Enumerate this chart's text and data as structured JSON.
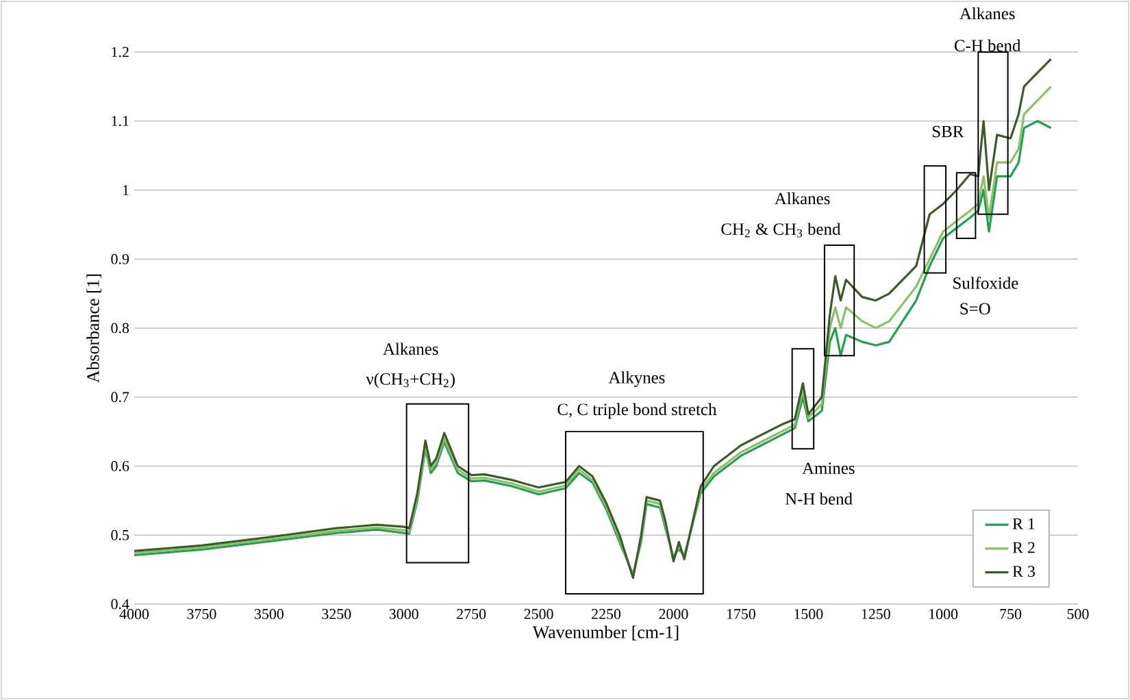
{
  "chart_data": {
    "type": "line",
    "xlabel": "Wavenumber [cm-1]",
    "ylabel": "Absorbance [1]",
    "x": [
      4000,
      3750,
      3500,
      3250,
      3100,
      3000,
      2980,
      2950,
      2920,
      2900,
      2880,
      2850,
      2800,
      2750,
      2700,
      2600,
      2500,
      2400,
      2350,
      2300,
      2250,
      2200,
      2150,
      2120,
      2100,
      2050,
      2030,
      2000,
      1980,
      1960,
      1900,
      1850,
      1750,
      1700,
      1600,
      1550,
      1520,
      1500,
      1450,
      1420,
      1400,
      1380,
      1360,
      1300,
      1250,
      1200,
      1100,
      1050,
      1000,
      950,
      900,
      870,
      850,
      830,
      800,
      750,
      720,
      700,
      650,
      600
    ],
    "series": [
      {
        "name": "R 1",
        "color": "#1fa34a",
        "values": [
          0.471,
          0.479,
          0.491,
          0.503,
          0.508,
          0.503,
          0.502,
          0.55,
          0.625,
          0.59,
          0.6,
          0.635,
          0.59,
          0.578,
          0.579,
          0.571,
          0.559,
          0.568,
          0.59,
          0.576,
          0.538,
          0.49,
          0.443,
          0.49,
          0.545,
          0.54,
          0.51,
          0.468,
          0.48,
          0.47,
          0.56,
          0.585,
          0.615,
          0.625,
          0.645,
          0.655,
          0.7,
          0.665,
          0.68,
          0.78,
          0.8,
          0.76,
          0.79,
          0.78,
          0.775,
          0.78,
          0.84,
          0.89,
          0.93,
          0.945,
          0.96,
          0.97,
          1.0,
          0.94,
          1.02,
          1.02,
          1.04,
          1.09,
          1.1,
          1.09
        ]
      },
      {
        "name": "R 2",
        "color": "#8cc068",
        "values": [
          0.474,
          0.482,
          0.494,
          0.506,
          0.511,
          0.507,
          0.505,
          0.555,
          0.63,
          0.595,
          0.605,
          0.64,
          0.595,
          0.582,
          0.583,
          0.575,
          0.563,
          0.572,
          0.595,
          0.58,
          0.542,
          0.495,
          0.44,
          0.495,
          0.55,
          0.545,
          0.515,
          0.465,
          0.485,
          0.468,
          0.565,
          0.59,
          0.62,
          0.63,
          0.65,
          0.66,
          0.71,
          0.67,
          0.69,
          0.8,
          0.83,
          0.8,
          0.83,
          0.81,
          0.8,
          0.81,
          0.86,
          0.9,
          0.94,
          0.955,
          0.97,
          0.98,
          1.02,
          0.96,
          1.04,
          1.04,
          1.06,
          1.11,
          1.13,
          1.15
        ]
      },
      {
        "name": "R 3",
        "color": "#3d5a2a",
        "values": [
          0.477,
          0.485,
          0.497,
          0.51,
          0.515,
          0.512,
          0.51,
          0.561,
          0.637,
          0.6,
          0.611,
          0.648,
          0.6,
          0.587,
          0.588,
          0.58,
          0.569,
          0.577,
          0.6,
          0.585,
          0.547,
          0.5,
          0.438,
          0.5,
          0.555,
          0.55,
          0.52,
          0.462,
          0.49,
          0.465,
          0.57,
          0.6,
          0.63,
          0.64,
          0.66,
          0.668,
          0.72,
          0.675,
          0.7,
          0.82,
          0.875,
          0.84,
          0.87,
          0.845,
          0.84,
          0.85,
          0.89,
          0.965,
          0.98,
          1.0,
          1.023,
          1.02,
          1.1,
          1.0,
          1.08,
          1.075,
          1.11,
          1.15,
          1.17,
          1.19
        ]
      }
    ],
    "xlim": [
      4000,
      500
    ],
    "xticks": [
      4000,
      3750,
      3500,
      3250,
      3000,
      2750,
      2500,
      2250,
      2000,
      1750,
      1500,
      1250,
      1000,
      750,
      500
    ],
    "ylim": [
      0.4,
      1.2
    ],
    "yticks": [
      0.4,
      0.5,
      0.6,
      0.7,
      0.8,
      0.9,
      1,
      1.1,
      1.2
    ],
    "grid": "y",
    "legend": "bottom right",
    "annotations": [
      "Alkanes",
      "ν(CH$_{3}$+CH$_{2}$)",
      "Alkynes",
      "C, C triple bond stretch",
      "Amines",
      "N-H bend",
      "Alkanes",
      "CH$_{2}$ & CH$_{3}$ bend",
      "Sulfoxide",
      "S=O",
      "SBR",
      "Alkanes",
      "C-H bend"
    ]
  }
}
